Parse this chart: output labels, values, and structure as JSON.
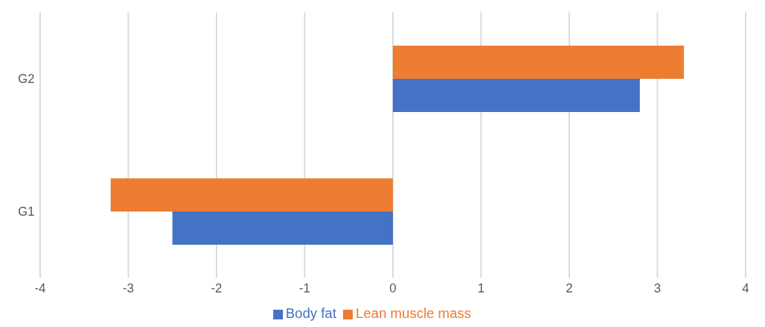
{
  "chart_data": {
    "type": "bar",
    "orientation": "horizontal",
    "categories": [
      "G2",
      "G1"
    ],
    "series": [
      {
        "name": "Lean muscle mass",
        "color": "#ed7d31",
        "values": [
          3.3,
          -3.2
        ]
      },
      {
        "name": "Body fat",
        "color": "#4472c4",
        "values": [
          2.8,
          -2.5
        ]
      }
    ],
    "xlim": [
      -4,
      4
    ],
    "xticks": [
      -4,
      -3,
      -2,
      -1,
      0,
      1,
      2,
      3,
      4
    ],
    "grid": "x",
    "legend": "bottom"
  }
}
